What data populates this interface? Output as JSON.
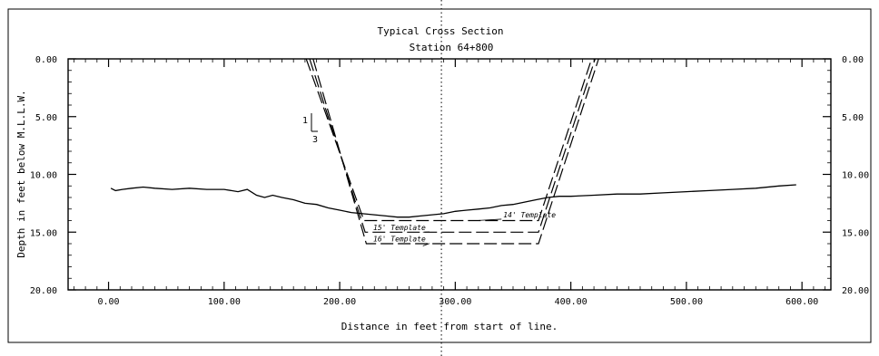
{
  "chart_data": {
    "type": "line",
    "title": "Typical Cross Section",
    "subtitle": "Station 64+800",
    "xlabel": "Distance in feet from start of line.",
    "ylabel": "Depth in feet below M.L.L.W.",
    "xlim": [
      -35,
      625
    ],
    "ylim": [
      0,
      20
    ],
    "y_inverted": true,
    "x_ticks": [
      0,
      100,
      200,
      300,
      400,
      500,
      600
    ],
    "x_tick_labels": [
      "0.00",
      "100.00",
      "200.00",
      "300.00",
      "400.00",
      "500.00",
      "600.00"
    ],
    "y_ticks": [
      0,
      5,
      10,
      15,
      20
    ],
    "y_tick_labels": [
      "0.00",
      "5.00",
      "10.00",
      "15.00",
      "20.00"
    ],
    "centerline_x": 288,
    "slope_label": {
      "rise": "1",
      "run": "3"
    },
    "series": [
      {
        "role": "profile",
        "style": "solid",
        "x": [
          2,
          6,
          12,
          20,
          30,
          40,
          55,
          70,
          85,
          100,
          112,
          120,
          128,
          135,
          142,
          150,
          160,
          170,
          180,
          190,
          200,
          210,
          220,
          230,
          240,
          250,
          260,
          270,
          280,
          290,
          300,
          310,
          320,
          330,
          340,
          350,
          360,
          370,
          380,
          390,
          400,
          420,
          440,
          460,
          480,
          500,
          520,
          540,
          560,
          580,
          595
        ],
        "y": [
          11.2,
          11.4,
          11.3,
          11.2,
          11.1,
          11.2,
          11.3,
          11.2,
          11.3,
          11.3,
          11.5,
          11.3,
          11.8,
          12.0,
          11.8,
          12.0,
          12.2,
          12.5,
          12.6,
          12.9,
          13.1,
          13.3,
          13.4,
          13.5,
          13.6,
          13.7,
          13.7,
          13.6,
          13.5,
          13.4,
          13.2,
          13.1,
          13.0,
          12.9,
          12.7,
          12.6,
          12.4,
          12.2,
          12.0,
          11.9,
          11.9,
          11.8,
          11.7,
          11.7,
          11.6,
          11.5,
          11.4,
          11.3,
          11.2,
          11.0,
          10.9
        ]
      },
      {
        "name": "14' Template",
        "style": "dashed",
        "x": [
          171,
          221,
          372,
          418
        ],
        "y": [
          0,
          14,
          14,
          0
        ]
      },
      {
        "name": "15' Template",
        "style": "dashed",
        "x": [
          174,
          222,
          372,
          421
        ],
        "y": [
          0,
          15,
          15,
          0
        ]
      },
      {
        "name": "16' Template",
        "style": "dashed",
        "x": [
          177,
          223,
          372,
          424
        ],
        "y": [
          0,
          16,
          16,
          0
        ]
      }
    ],
    "annotations": [
      {
        "text": "14' Template",
        "at": [
          340,
          13.8
        ],
        "leader_to": [
          318,
          14.0
        ]
      },
      {
        "text": "15' Template",
        "at": [
          229,
          14.9
        ],
        "leader_to": [
          272,
          15.0
        ]
      },
      {
        "text": "16' Template",
        "at": [
          229,
          15.9
        ],
        "leader_to": [
          272,
          16.2
        ]
      }
    ]
  }
}
